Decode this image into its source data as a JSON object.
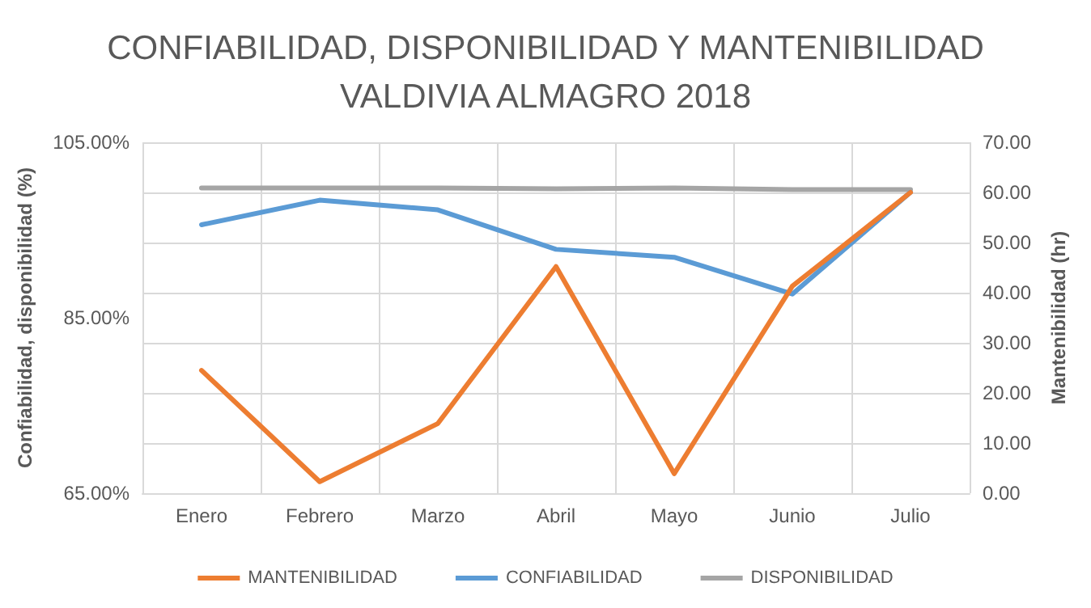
{
  "chart_data": {
    "type": "line",
    "title": "CONFIABILIDAD, DISPONIBILIDAD Y MANTENIBILIDAD\nVALDIVIA ALMAGRO 2018",
    "ylabel": "Confiabilidad, disponibilidad (%)",
    "y2label": "Mantenibilidad (hr)",
    "categories": [
      "Enero",
      "Febrero",
      "Marzo",
      "Abril",
      "Mayo",
      "Junio",
      "Julio"
    ],
    "series": [
      {
        "name": "MANTENIBILIDAD",
        "color": "#ed7d31",
        "axis": "y2",
        "values": [
          24.5,
          2.3,
          13.9,
          45.2,
          3.9,
          41.3,
          60.0
        ]
      },
      {
        "name": "CONFIABILIDAD",
        "color": "#5b9bd5",
        "values": [
          95.6,
          98.4,
          97.3,
          92.8,
          91.9,
          87.7,
          99.3
        ]
      },
      {
        "name": "DISPONIBILIDAD",
        "color": "#a5a5a5",
        "values": [
          99.8,
          99.8,
          99.8,
          99.7,
          99.8,
          99.6,
          99.6
        ]
      }
    ],
    "ylim": [
      65,
      105
    ],
    "yticks": [
      {
        "value": 65,
        "label": "65.00%"
      },
      {
        "value": 85,
        "label": "85.00%"
      },
      {
        "value": 105,
        "label": "105.00%"
      }
    ],
    "y2lim": [
      0,
      70
    ],
    "y2ticks": [
      {
        "value": 0,
        "label": "0.00"
      },
      {
        "value": 10,
        "label": "10.00"
      },
      {
        "value": 20,
        "label": "20.00"
      },
      {
        "value": 30,
        "label": "30.00"
      },
      {
        "value": 40,
        "label": "40.00"
      },
      {
        "value": 50,
        "label": "50.00"
      },
      {
        "value": 60,
        "label": "60.00"
      },
      {
        "value": 70,
        "label": "70.00"
      }
    ],
    "grid": true,
    "legend": "bottom",
    "marker": "none",
    "line_style": "solid"
  }
}
